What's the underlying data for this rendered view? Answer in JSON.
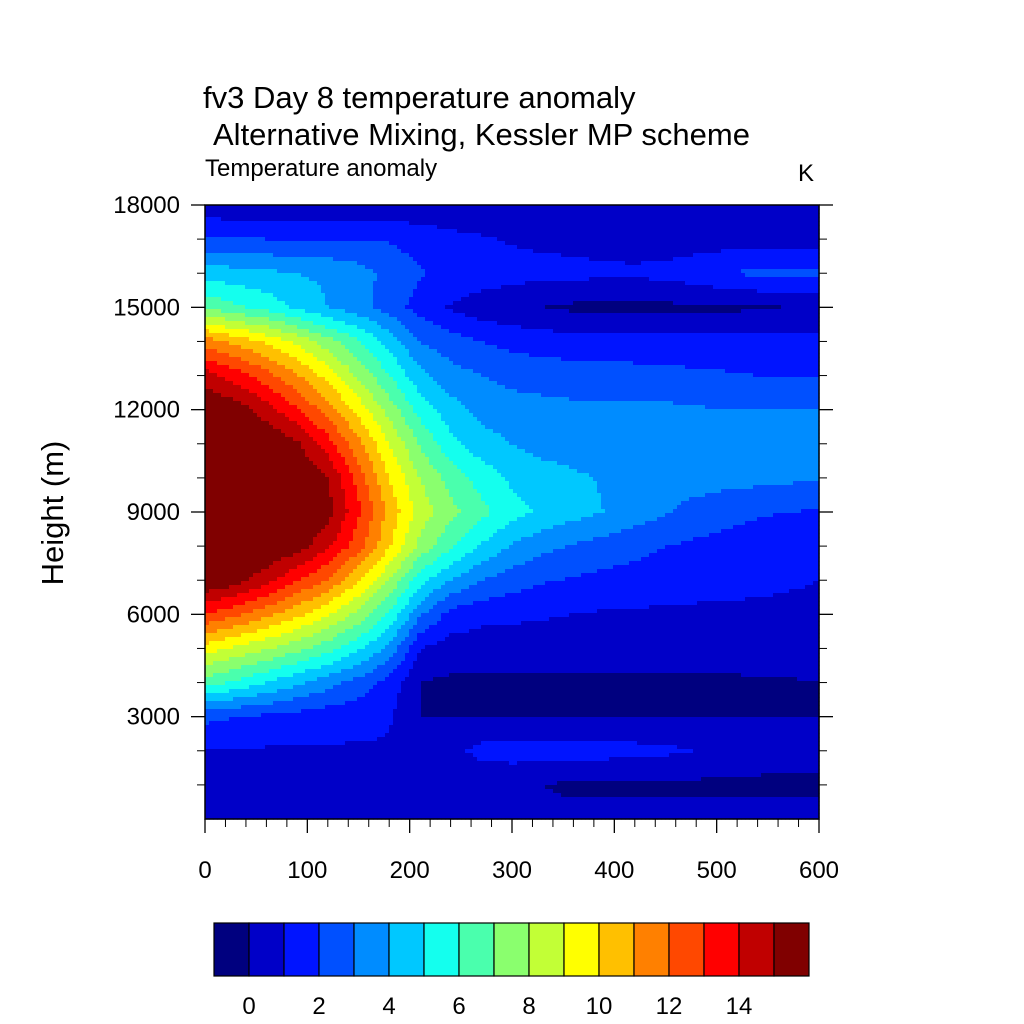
{
  "chart_data": {
    "type": "heatmap",
    "title": "fv3 Day 8 temperature anomaly",
    "subtitle": "Alternative Mixing, Kessler MP scheme",
    "left_string": "Temperature anomaly",
    "right_string": "K",
    "ylabel": "Height (m)",
    "xlabel": "",
    "xlim": [
      0,
      600
    ],
    "ylim": [
      0,
      18000
    ],
    "x_ticks": [
      "0",
      "100",
      "200",
      "300",
      "400",
      "500",
      "600"
    ],
    "y_ticks": [
      "3000",
      "6000",
      "9000",
      "12000",
      "15000",
      "18000"
    ],
    "colorbar_ticks": [
      "0",
      "2",
      "4",
      "6",
      "8",
      "10",
      "12",
      "14"
    ],
    "colorbar_colors": [
      "#00007f",
      "#0000c8",
      "#0014ff",
      "#0050ff",
      "#008cff",
      "#00c8ff",
      "#14ffee",
      "#4affad",
      "#8aff6e",
      "#c2ff36",
      "#ffff00",
      "#ffc000",
      "#ff8000",
      "#ff4800",
      "#ff0000",
      "#c00000",
      "#800000"
    ],
    "color_levels": [
      -1,
      0,
      1,
      2,
      3,
      4,
      5,
      6,
      7,
      8,
      9,
      10,
      11,
      12,
      13,
      14,
      15
    ],
    "grid": false,
    "x": [
      0,
      30,
      60,
      90,
      120,
      150,
      180,
      210,
      240,
      270,
      300,
      330,
      360,
      390,
      420,
      450,
      480,
      510,
      540,
      570,
      600
    ],
    "y": [
      0,
      1000,
      2000,
      3000,
      4000,
      5000,
      6000,
      7000,
      8000,
      9000,
      10000,
      11000,
      12000,
      13000,
      14000,
      15000,
      16000,
      17000,
      18000
    ],
    "z": [
      [
        0.5,
        0.5,
        0.5,
        0.5,
        0.5,
        0.5,
        0.5,
        0.0,
        0.0,
        0.2,
        0.3,
        0.3,
        0.3,
        0.3,
        0.3,
        0.3,
        0.3,
        0.3,
        0.3,
        0.3,
        0.3
      ],
      [
        0.6,
        0.6,
        0.6,
        0.6,
        0.6,
        0.6,
        0.6,
        0.4,
        0.3,
        0.3,
        0.3,
        0.0,
        -0.2,
        -0.2,
        -0.2,
        -0.2,
        -0.2,
        -0.2,
        -0.2,
        -0.2,
        -0.2
      ],
      [
        0.9,
        0.9,
        0.9,
        0.9,
        0.9,
        0.9,
        0.9,
        0.6,
        0.7,
        1.3,
        1.4,
        1.5,
        1.5,
        1.4,
        1.3,
        1.2,
        1.0,
        0.8,
        0.5,
        0.4,
        0.4
      ],
      [
        2.3,
        2.0,
        1.8,
        1.6,
        1.4,
        1.3,
        1.1,
        0.0,
        0.0,
        0.0,
        0.0,
        0.0,
        0.0,
        0.0,
        0.0,
        0.0,
        0.0,
        0.0,
        0.0,
        0.0,
        0.0
      ],
      [
        6.5,
        5.8,
        5.0,
        4.2,
        3.4,
        2.6,
        1.6,
        0.0,
        -0.2,
        -0.2,
        -0.2,
        -0.2,
        -0.2,
        -0.2,
        -0.2,
        -0.2,
        -0.2,
        -0.2,
        -0.1,
        -0.1,
        -0.1
      ],
      [
        9.5,
        8.8,
        8.1,
        7.3,
        6.4,
        5.2,
        3.8,
        1.0,
        0.6,
        0.5,
        0.5,
        0.5,
        0.5,
        0.5,
        0.5,
        0.5,
        0.5,
        0.5,
        0.6,
        0.8,
        1.0
      ],
      [
        13.0,
        12.2,
        11.3,
        10.3,
        9.1,
        7.7,
        5.8,
        3.2,
        1.6,
        1.3,
        1.2,
        1.1,
        1.0,
        0.9,
        0.9,
        0.8,
        0.8,
        0.8,
        0.8,
        0.8,
        0.8
      ],
      [
        16.0,
        15.5,
        14.4,
        13.1,
        11.9,
        10.1,
        8.0,
        5.4,
        4.0,
        3.0,
        2.5,
        2.1,
        1.9,
        1.7,
        1.6,
        1.5,
        1.4,
        1.3,
        1.2,
        1.1,
        1.0
      ],
      [
        16.0,
        16.0,
        16.0,
        15.6,
        14.2,
        12.4,
        10.1,
        7.7,
        6.2,
        4.9,
        3.9,
        3.3,
        2.9,
        2.6,
        2.3,
        2.0,
        1.8,
        1.7,
        1.6,
        1.5,
        1.4
      ],
      [
        16.0,
        16.0,
        16.0,
        16.0,
        15.4,
        13.2,
        10.7,
        8.6,
        7.3,
        6.3,
        5.4,
        4.8,
        4.4,
        4.0,
        3.5,
        3.1,
        2.6,
        2.3,
        2.1,
        2.0,
        1.9
      ],
      [
        16.0,
        16.0,
        16.0,
        16.0,
        15.0,
        12.6,
        10.0,
        8.0,
        6.6,
        5.6,
        4.8,
        4.5,
        4.2,
        3.9,
        3.7,
        3.5,
        3.5,
        3.4,
        3.3,
        3.2,
        3.1
      ],
      [
        16.0,
        16.0,
        16.0,
        15.2,
        13.5,
        11.3,
        9.0,
        6.9,
        5.3,
        4.4,
        4.0,
        3.6,
        3.4,
        3.3,
        3.3,
        3.3,
        3.2,
        3.2,
        3.2,
        3.2,
        3.2
      ],
      [
        16.0,
        15.6,
        14.5,
        13.1,
        11.5,
        9.6,
        7.6,
        5.6,
        4.4,
        3.7,
        3.4,
        3.3,
        3.2,
        3.2,
        3.2,
        3.2,
        3.1,
        3.0,
        3.0,
        3.0,
        3.0
      ],
      [
        14.5,
        13.5,
        12.4,
        11.1,
        9.6,
        7.8,
        6.0,
        4.3,
        3.4,
        3.0,
        2.7,
        2.6,
        2.5,
        2.5,
        2.4,
        2.3,
        2.2,
        2.1,
        2.0,
        2.0,
        2.0
      ],
      [
        11.5,
        10.7,
        9.8,
        8.7,
        7.4,
        6.1,
        4.6,
        3.0,
        2.4,
        2.0,
        1.7,
        1.5,
        1.4,
        1.3,
        1.3,
        1.3,
        1.3,
        1.3,
        1.3,
        1.3,
        1.3
      ],
      [
        6.8,
        6.2,
        5.6,
        4.8,
        4.0,
        3.4,
        2.5,
        1.6,
        0.9,
        0.4,
        0.2,
        0.0,
        -0.2,
        -0.2,
        -0.2,
        -0.2,
        -0.2,
        -0.2,
        -0.1,
        0.0,
        0.1
      ],
      [
        4.5,
        4.4,
        4.2,
        4.0,
        3.8,
        3.4,
        2.7,
        2.1,
        1.8,
        1.6,
        1.4,
        1.3,
        1.3,
        1.2,
        1.2,
        1.3,
        1.6,
        2.0,
        2.2,
        2.2,
        2.2
      ],
      [
        2.2,
        2.1,
        2.0,
        2.0,
        2.0,
        2.0,
        1.9,
        1.6,
        1.3,
        1.1,
        0.9,
        0.8,
        0.7,
        0.6,
        0.5,
        0.5,
        0.5,
        0.5,
        0.5,
        0.5,
        0.5
      ],
      [
        0.2,
        0.2,
        0.2,
        0.2,
        0.2,
        0.2,
        0.2,
        0.2,
        0.2,
        0.2,
        0.2,
        0.2,
        0.2,
        0.2,
        0.2,
        0.2,
        0.2,
        0.2,
        0.2,
        0.2,
        0.2
      ]
    ]
  }
}
